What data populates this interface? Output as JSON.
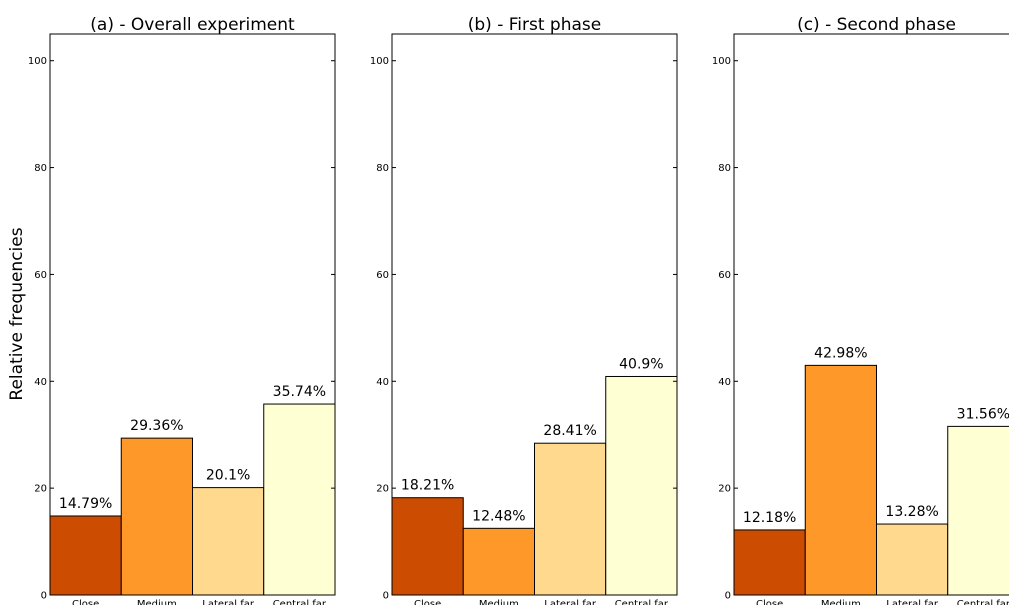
{
  "figure": {
    "ylabel": "Relative frequencies"
  },
  "colors": {
    "Close": "#cc4c02",
    "Medium": "#fe9929",
    "Lateral far": "#fed98e",
    "Central far": "#ffffd4"
  },
  "chart_data": [
    {
      "type": "bar",
      "title": "(a) - Overall experiment",
      "categories": [
        "Close",
        "Medium",
        "Lateral far",
        "Central far"
      ],
      "values": [
        14.79,
        29.36,
        20.1,
        35.74
      ],
      "labels": [
        "14.79%",
        "29.36%",
        "20.1%",
        "35.74%"
      ],
      "ylabel": "Relative frequencies",
      "ylim": [
        0,
        105
      ],
      "yticks": [
        0,
        20,
        40,
        60,
        80,
        100
      ],
      "grid": false
    },
    {
      "type": "bar",
      "title": "(b) - First phase",
      "categories": [
        "Close",
        "Medium",
        "Lateral far",
        "Central far"
      ],
      "values": [
        18.21,
        12.48,
        28.41,
        40.9
      ],
      "labels": [
        "18.21%",
        "12.48%",
        "28.41%",
        "40.9%"
      ],
      "ylim": [
        0,
        105
      ],
      "yticks": [
        0,
        20,
        40,
        60,
        80,
        100
      ],
      "grid": false
    },
    {
      "type": "bar",
      "title": "(c) - Second phase",
      "categories": [
        "Close",
        "Medium",
        "Lateral far",
        "Central far"
      ],
      "values": [
        12.18,
        42.98,
        13.28,
        31.56
      ],
      "labels": [
        "12.18%",
        "42.98%",
        "13.28%",
        "31.56%"
      ],
      "ylim": [
        0,
        105
      ],
      "yticks": [
        0,
        20,
        40,
        60,
        80,
        100
      ],
      "grid": false
    }
  ]
}
